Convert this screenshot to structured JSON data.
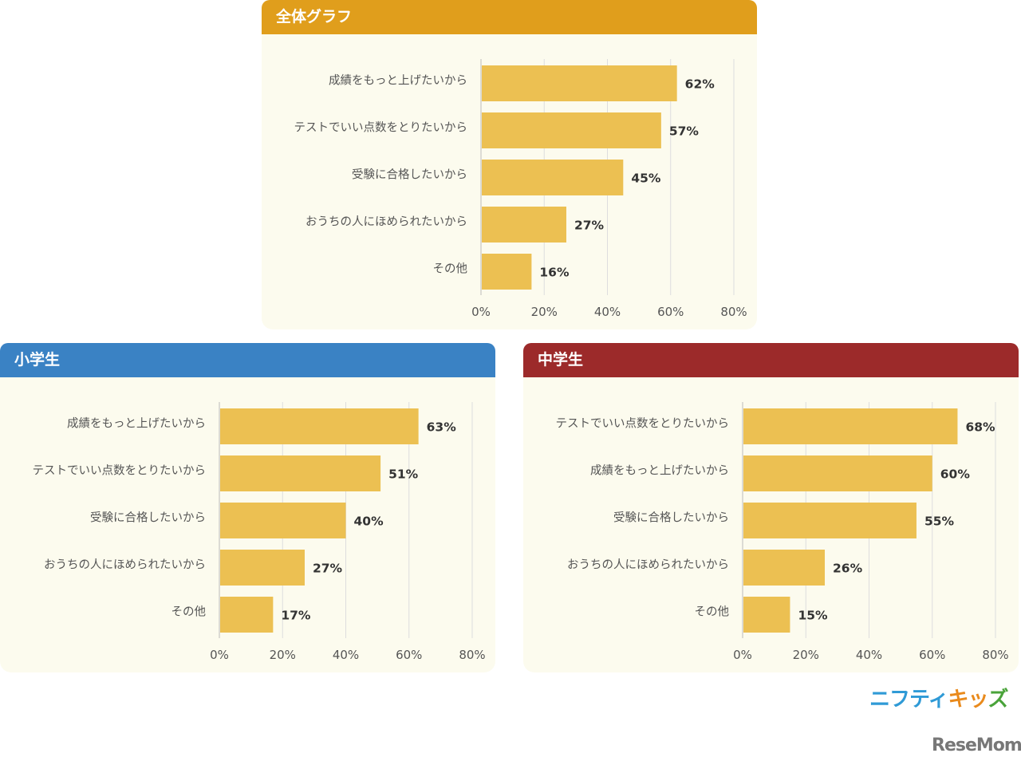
{
  "chart_data": [
    {
      "type": "bar",
      "orientation": "horizontal",
      "title": "全体グラフ",
      "header_color": "#e09e1c",
      "categories": [
        "成績をもっと上げたいから",
        "テストでいい点数をとりたいから",
        "受験に合格したいから",
        "おうちの人にほめられたいから",
        "その他"
      ],
      "values": [
        62,
        57,
        45,
        27,
        16
      ],
      "value_labels": [
        "62%",
        "57%",
        "45%",
        "27%",
        "16%"
      ],
      "xlim": [
        0,
        80
      ],
      "xticks": [
        "0%",
        "20%",
        "40%",
        "60%",
        "80%"
      ],
      "grid": true,
      "bar_color": "#ecc052"
    },
    {
      "type": "bar",
      "orientation": "horizontal",
      "title": "小学生",
      "header_color": "#3a82c4",
      "categories": [
        "成績をもっと上げたいから",
        "テストでいい点数をとりたいから",
        "受験に合格したいから",
        "おうちの人にほめられたいから",
        "その他"
      ],
      "values": [
        63,
        51,
        40,
        27,
        17
      ],
      "value_labels": [
        "63%",
        "51%",
        "40%",
        "27%",
        "17%"
      ],
      "xlim": [
        0,
        80
      ],
      "xticks": [
        "0%",
        "20%",
        "40%",
        "60%",
        "80%"
      ],
      "grid": true,
      "bar_color": "#ecc052"
    },
    {
      "type": "bar",
      "orientation": "horizontal",
      "title": "中学生",
      "header_color": "#9c2a2a",
      "categories": [
        "テストでいい点数をとりたいから",
        "成績をもっと上げたいから",
        "受験に合格したいから",
        "おうちの人にほめられたいから",
        "その他"
      ],
      "values": [
        68,
        60,
        55,
        26,
        15
      ],
      "value_labels": [
        "68%",
        "60%",
        "55%",
        "26%",
        "15%"
      ],
      "xlim": [
        0,
        80
      ],
      "xticks": [
        "0%",
        "20%",
        "40%",
        "60%",
        "80%"
      ],
      "grid": true,
      "bar_color": "#ecc052"
    }
  ],
  "logos": {
    "nifty": "ニフティキッズ",
    "nifty_a": "ニフティ",
    "nifty_b": "キッ",
    "nifty_c": "ズ",
    "resemom": "ReseMom"
  }
}
